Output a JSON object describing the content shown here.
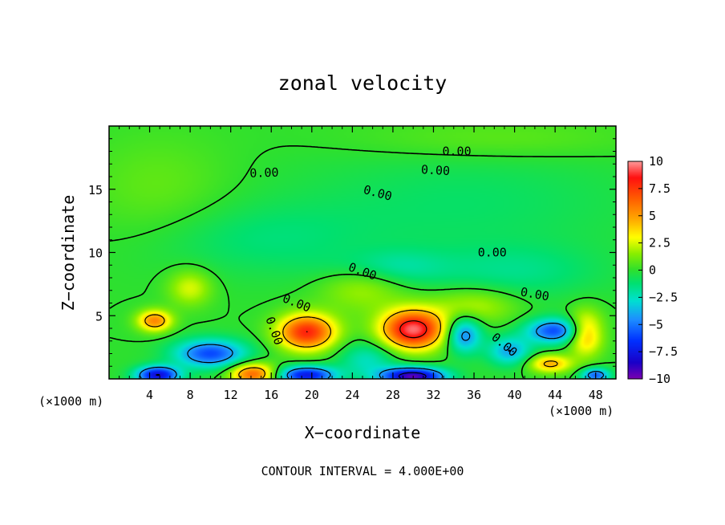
{
  "chart_data": {
    "type": "contour",
    "title": "zonal velocity",
    "xlabel": "X−coordinate",
    "ylabel": "Z−coordinate",
    "x_unit_left": "(×1000 m)",
    "x_unit_right": "(×1000 m)",
    "xlim": [
      0,
      50
    ],
    "ylim": [
      0,
      20
    ],
    "x_ticks": [
      4,
      8,
      12,
      16,
      20,
      24,
      28,
      32,
      36,
      40,
      44,
      48
    ],
    "x_tick_labels": [
      "4",
      "8",
      "12",
      "16",
      "20",
      "24",
      "28",
      "32",
      "36",
      "40",
      "44",
      "48"
    ],
    "y_ticks": [
      5,
      10,
      15
    ],
    "y_tick_labels": [
      "5",
      "10",
      "15"
    ],
    "contour_interval_text": "CONTOUR INTERVAL = 4.000E+00",
    "contour_label_text": "0.00",
    "colorbar": {
      "min": -10,
      "max": 10,
      "ticks": [
        10,
        7.5,
        5,
        2.5,
        0,
        -2.5,
        -5,
        -7.5,
        -10
      ],
      "tick_labels": [
        "10",
        "7.5",
        "5",
        "2.5",
        "0",
        "−2.5",
        "−5",
        "−7.5",
        "−10"
      ],
      "colors": [
        {
          "value": -10,
          "color": "#7a00b0"
        },
        {
          "value": -8.5,
          "color": "#1a00c8"
        },
        {
          "value": -6.5,
          "color": "#0030ff"
        },
        {
          "value": -4.5,
          "color": "#1e90ff"
        },
        {
          "value": -2.8,
          "color": "#00e0d0"
        },
        {
          "value": -1.2,
          "color": "#00e070"
        },
        {
          "value": 0,
          "color": "#2ee02e"
        },
        {
          "value": 1.5,
          "color": "#88ee00"
        },
        {
          "value": 3,
          "color": "#ffff00"
        },
        {
          "value": 4.5,
          "color": "#ffb000"
        },
        {
          "value": 6.5,
          "color": "#ff6000"
        },
        {
          "value": 8.5,
          "color": "#ff1010"
        },
        {
          "value": 10,
          "color": "#ff9a9a"
        }
      ]
    },
    "features": [
      {
        "x": 30,
        "z": 3.9,
        "sx": 2.2,
        "sz": 1.1,
        "value": 9.5
      },
      {
        "x": 19.5,
        "z": 3.7,
        "sx": 2.0,
        "sz": 1.0,
        "value": 8.0
      },
      {
        "x": 14.2,
        "z": 0.4,
        "sx": 1.6,
        "sz": 0.6,
        "value": 6.5
      },
      {
        "x": 4.5,
        "z": 4.6,
        "sx": 1.2,
        "sz": 0.6,
        "value": 5.5
      },
      {
        "x": 47,
        "z": 3.6,
        "sx": 1.2,
        "sz": 1.2,
        "value": 5.0
      },
      {
        "x": 43.5,
        "z": 1.2,
        "sx": 1.5,
        "sz": 0.5,
        "value": 4.5
      },
      {
        "x": 8,
        "z": 7.2,
        "sx": 1.5,
        "sz": 1.0,
        "value": 2.6
      },
      {
        "x": 25,
        "z": 7.5,
        "sx": 3.0,
        "sz": 1.5,
        "value": 2.2
      },
      {
        "x": 36,
        "z": 5.8,
        "sx": 3.0,
        "sz": 1.0,
        "value": 2.2
      },
      {
        "x": 10,
        "z": 2.0,
        "sx": 2.5,
        "sz": 0.8,
        "value": -6.0
      },
      {
        "x": 4.8,
        "z": 0.3,
        "sx": 1.5,
        "sz": 0.5,
        "value": -8.0
      },
      {
        "x": 19.5,
        "z": 0.3,
        "sx": 2.0,
        "sz": 0.5,
        "value": -7.5
      },
      {
        "x": 30,
        "z": 0.2,
        "sx": 2.2,
        "sz": 0.5,
        "value": -9.5
      },
      {
        "x": 44,
        "z": 3.8,
        "sx": 2.0,
        "sz": 0.7,
        "value": -6.0
      },
      {
        "x": 35,
        "z": 3.5,
        "sx": 1.2,
        "sz": 1.0,
        "value": -5.0
      },
      {
        "x": 39.5,
        "z": 2.2,
        "sx": 1.5,
        "sz": 0.8,
        "value": -4.0
      },
      {
        "x": 48,
        "z": 0.3,
        "sx": 1.0,
        "sz": 0.4,
        "value": -5.5
      },
      {
        "x": 25.5,
        "z": 1.5,
        "sx": 2.0,
        "sz": 1.0,
        "value": -2.5
      },
      {
        "x": 27,
        "z": 8.8,
        "sx": 4.0,
        "sz": 1.0,
        "value": -2.2
      },
      {
        "x": 40,
        "z": 8.5,
        "sx": 6.0,
        "sz": 1.5,
        "value": -1.5
      },
      {
        "x": 15,
        "z": 11,
        "sx": 8.0,
        "sz": 2.0,
        "value": -1.2
      },
      {
        "x": 35,
        "z": 14,
        "sx": 12.0,
        "sz": 3.0,
        "value": -1.0
      },
      {
        "x": 5,
        "z": 15,
        "sx": 5.0,
        "sz": 3.0,
        "value": 0.9
      },
      {
        "x": 38,
        "z": 19,
        "sx": 10.0,
        "sz": 1.2,
        "value": 0.9
      }
    ],
    "contour_labels": [
      {
        "x": 34.3,
        "z": 18.0,
        "angle": 0
      },
      {
        "x": 32.2,
        "z": 16.5,
        "angle": 3
      },
      {
        "x": 15.3,
        "z": 16.3,
        "angle": -2
      },
      {
        "x": 26.5,
        "z": 14.7,
        "angle": 15
      },
      {
        "x": 37.8,
        "z": 10.0,
        "angle": 0
      },
      {
        "x": 25.0,
        "z": 8.5,
        "angle": 20
      },
      {
        "x": 18.5,
        "z": 6.0,
        "angle": 22
      },
      {
        "x": 16.3,
        "z": 3.8,
        "angle": 70
      },
      {
        "x": 42.0,
        "z": 6.7,
        "angle": 10
      },
      {
        "x": 39.0,
        "z": 2.7,
        "angle": 40
      }
    ],
    "grid": false,
    "legend": "colorbar-right"
  }
}
